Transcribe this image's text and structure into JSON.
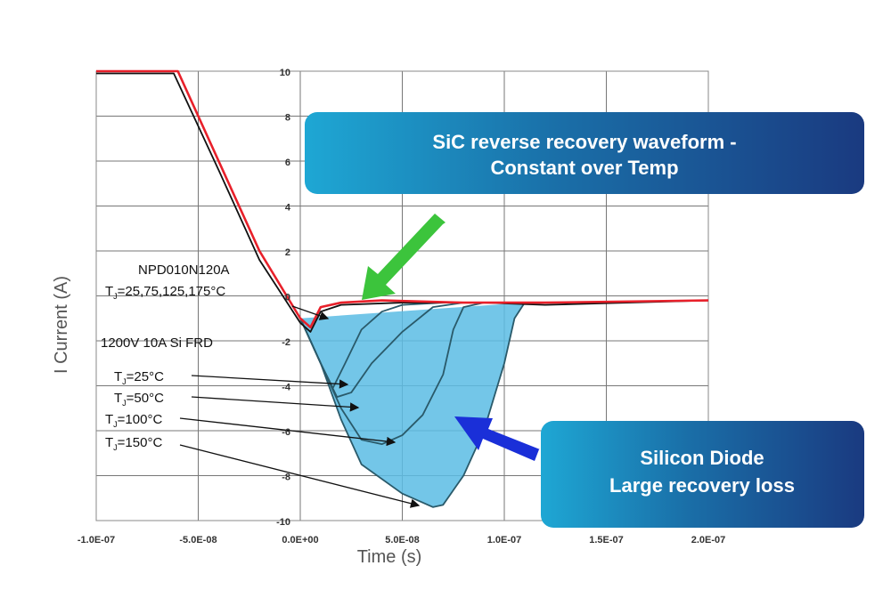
{
  "chart_data": {
    "type": "line",
    "xlabel": "Time (s)",
    "ylabel": "I Current (A)",
    "xlim": [
      -1e-07,
      2e-07
    ],
    "ylim": [
      -10,
      10
    ],
    "xticks": [
      {
        "value": -1e-07,
        "label": "-1.0E-07"
      },
      {
        "value": -5e-08,
        "label": "-5.0E-08"
      },
      {
        "value": 0,
        "label": "0.0E+00"
      },
      {
        "value": 5e-08,
        "label": "5.0E-08"
      },
      {
        "value": 1e-07,
        "label": "1.0E-07"
      },
      {
        "value": 1.5e-07,
        "label": "1.5E-07"
      },
      {
        "value": 2e-07,
        "label": "2.0E-07"
      }
    ],
    "yticks": [
      10,
      8,
      6,
      4,
      2,
      0,
      -2,
      -4,
      -6,
      -8,
      -10
    ],
    "grid": true,
    "series": [
      {
        "color": "#2a5a6a",
        "fill": "#5bbce4",
        "x": [
          0,
          1e-08,
          2e-08,
          3e-08,
          5e-08,
          6.5e-08,
          7e-08,
          8e-08,
          9e-08,
          1e-07,
          1.05e-07,
          1.1e-07
        ],
        "values": [
          -1,
          -3,
          -5.5,
          -7.5,
          -8.8,
          -9.4,
          -9.3,
          -8,
          -6,
          -3,
          -1,
          -0.3
        ]
      },
      {
        "color": "#2a5a6a",
        "x": [
          0,
          1e-08,
          2e-08,
          3e-08,
          4e-08,
          5e-08,
          6e-08,
          7e-08,
          7.5e-08,
          8e-08,
          9e-08
        ],
        "values": [
          -1,
          -3,
          -5,
          -6.4,
          -6.6,
          -6.2,
          -5.3,
          -3.5,
          -1.5,
          -0.5,
          -0.3
        ]
      },
      {
        "color": "#2a5a6a",
        "x": [
          0,
          1e-08,
          1.8e-08,
          2.5e-08,
          3.5e-08,
          5e-08,
          6.5e-08,
          8e-08
        ],
        "values": [
          -1,
          -3,
          -4.5,
          -4.3,
          -3,
          -1.6,
          -0.5,
          -0.3
        ]
      },
      {
        "color": "#2a5a6a",
        "x": [
          0,
          1e-08,
          1.6e-08,
          2.2e-08,
          3e-08,
          4e-08,
          5e-08,
          7e-08
        ],
        "values": [
          -1,
          -3,
          -4.1,
          -3,
          -1.5,
          -0.7,
          -0.4,
          -0.3
        ]
      },
      {
        "color": "#111111",
        "x": [
          -1e-07,
          -6.2e-08,
          -4e-08,
          -2e-08,
          0,
          5e-09,
          1e-08,
          2e-08,
          5e-08,
          9e-08,
          1.2e-07,
          2e-07
        ],
        "values": [
          9.9,
          9.9,
          5.6,
          1.6,
          -1.2,
          -1.6,
          -0.7,
          -0.4,
          -0.3,
          -0.3,
          -0.4,
          -0.2
        ]
      },
      {
        "color": "#e8202a",
        "x": [
          -1e-07,
          -6e-08,
          -4e-08,
          -2e-08,
          0,
          5e-09,
          1e-08,
          2e-08,
          4e-08,
          8e-08,
          1.2e-07,
          2e-07
        ],
        "values": [
          10,
          10,
          6,
          2,
          -1,
          -1.4,
          -0.5,
          -0.3,
          -0.2,
          -0.3,
          -0.3,
          -0.2
        ]
      }
    ],
    "annotations": [
      {
        "text": "NPD010N120A"
      },
      {
        "parts": [
          "T",
          "J",
          "=25,75,125,175°C"
        ]
      },
      {
        "text": "1200V 10A  Si FRD"
      },
      {
        "parts": [
          "T",
          "J",
          "=25°C"
        ]
      },
      {
        "parts": [
          "T",
          "J",
          "=50°C"
        ]
      },
      {
        "parts": [
          "T",
          "J",
          "=100°C"
        ]
      },
      {
        "parts": [
          "T",
          "J",
          "=150°C"
        ]
      }
    ],
    "callouts": [
      {
        "lines": [
          "SiC reverse recovery waveform -",
          "Constant over Temp"
        ]
      },
      {
        "lines": [
          "Silicon Diode",
          "Large recovery loss"
        ]
      }
    ]
  }
}
